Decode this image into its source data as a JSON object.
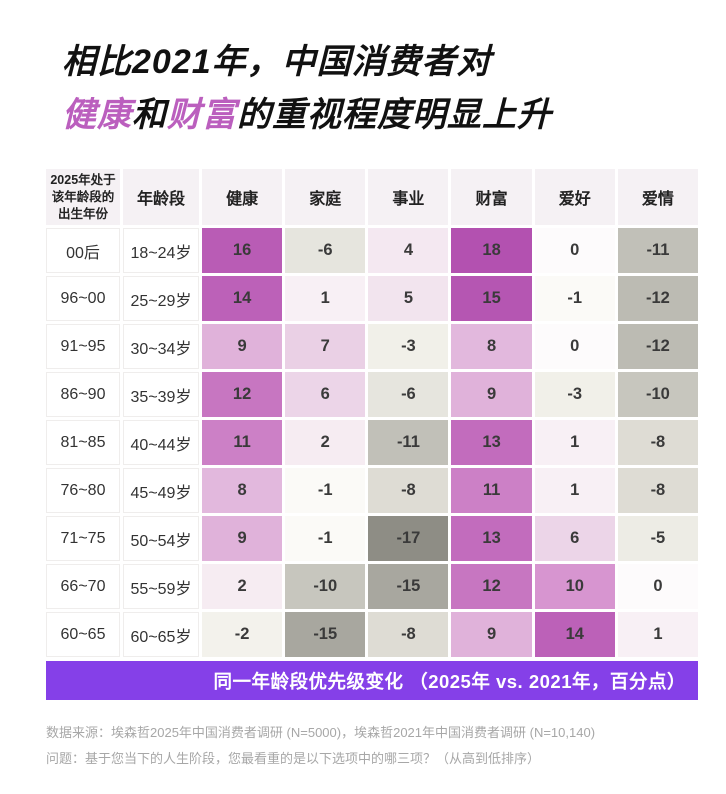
{
  "title": {
    "line1": "相比2021年，中国消费者对",
    "line2": {
      "seg1": "健康",
      "seg2": "和",
      "seg3": "财富",
      "seg4": "的重视程度明显上升"
    }
  },
  "accent": {
    "title_highlight": "#bb5fbe",
    "footer_band": "#8540e8",
    "header_bg": "#f5f1f4"
  },
  "chart_data": {
    "type": "heatmap",
    "title": "同一年龄段优先级变化 （2025年 vs. 2021年，百分点）",
    "corner_header": "2025年处于\n该年龄段的\n出生年份",
    "age_header": "年龄段",
    "columns": [
      "健康",
      "家庭",
      "事业",
      "财富",
      "爱好",
      "爱情"
    ],
    "rows": [
      {
        "birth": "00后",
        "age": "18~24岁",
        "values": [
          16,
          -6,
          4,
          18,
          0,
          -11
        ]
      },
      {
        "birth": "96~00",
        "age": "25~29岁",
        "values": [
          14,
          1,
          5,
          15,
          -1,
          -12
        ]
      },
      {
        "birth": "91~95",
        "age": "30~34岁",
        "values": [
          9,
          7,
          -3,
          8,
          0,
          -12
        ]
      },
      {
        "birth": "86~90",
        "age": "35~39岁",
        "values": [
          12,
          6,
          -6,
          9,
          -3,
          -10
        ]
      },
      {
        "birth": "81~85",
        "age": "40~44岁",
        "values": [
          11,
          2,
          -11,
          13,
          1,
          -8
        ]
      },
      {
        "birth": "76~80",
        "age": "45~49岁",
        "values": [
          8,
          -1,
          -8,
          11,
          1,
          -8
        ]
      },
      {
        "birth": "71~75",
        "age": "50~54岁",
        "values": [
          9,
          -1,
          -17,
          13,
          6,
          -5
        ]
      },
      {
        "birth": "66~70",
        "age": "55~59岁",
        "values": [
          2,
          -10,
          -15,
          12,
          10,
          0
        ]
      },
      {
        "birth": "60~65",
        "age": "60~65岁",
        "values": [
          -2,
          -15,
          -8,
          9,
          14,
          1
        ]
      }
    ],
    "value_range": [
      -17,
      18
    ],
    "cell_colors": {
      "18": "#b351b0",
      "16": "#b95cb5",
      "15": "#b556b2",
      "14": "#bc61b8",
      "13": "#c26cbd",
      "12": "#c776c1",
      "11": "#cc80c6",
      "10": "#d795d0",
      "9": "#e0b2da",
      "8": "#e2b8dd",
      "7": "#ead0e5",
      "6": "#ecd5e8",
      "5": "#f2e4ee",
      "4": "#f4e8f1",
      "2": "#f6ecf2",
      "1": "#f8f0f5",
      "0": "#fdfbfc",
      "-1": "#fbfaf7",
      "-2": "#f3f2ec",
      "-3": "#f1f0e9",
      "-5": "#edece5",
      "-6": "#e6e5de",
      "-8": "#dedcd4",
      "-10": "#c7c6be",
      "-11": "#c1c0b8",
      "-12": "#bcbbb3",
      "-15": "#a8a79f",
      "-17": "#8e8d85"
    }
  },
  "footer_band": {
    "label": "同一年龄段优先级变化 （2025年 vs. 2021年，百分点）"
  },
  "source": {
    "line1": "数据来源：埃森哲2025年中国消费者调研 (N=5000)，埃森哲2021年中国消费者调研 (N=10,140)",
    "line2": "问题：基于您当下的人生阶段，您最看重的是以下选项中的哪三项？（从高到低排序）"
  }
}
